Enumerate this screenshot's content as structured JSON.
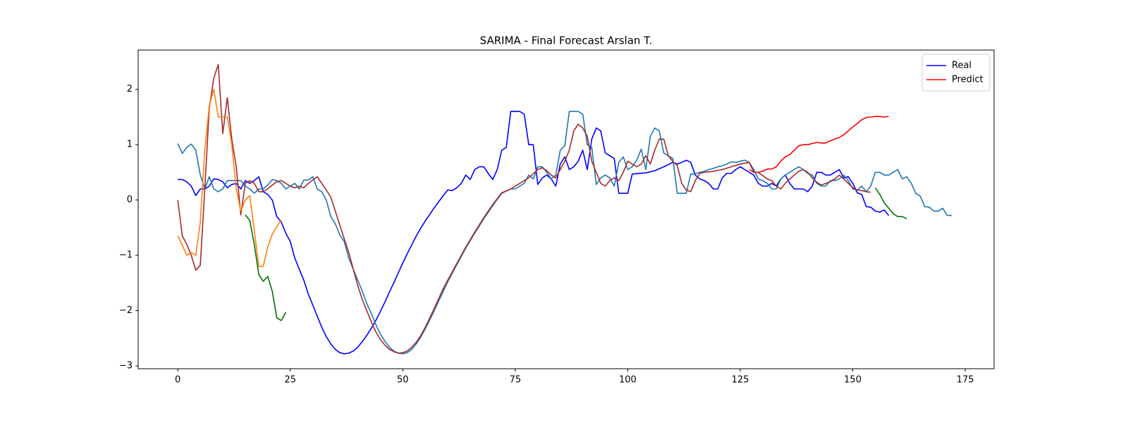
{
  "chart_data": {
    "type": "line",
    "title": "SARIMA - Final Forecast Arslan T.",
    "xlim": [
      -8.8,
      181.4
    ],
    "ylim": [
      -3.05,
      2.71
    ],
    "xticks": [
      0,
      25,
      50,
      75,
      100,
      125,
      150,
      175
    ],
    "yticks": [
      {
        "value": -3,
        "label": "−3"
      },
      {
        "value": -2,
        "label": "−2"
      },
      {
        "value": -1,
        "label": "−1"
      },
      0,
      1,
      2
    ],
    "legend": "upper right",
    "series": [
      {
        "name": "Real",
        "color": "blue",
        "x": [
          0,
          1,
          2,
          3,
          4,
          5,
          6,
          7,
          8,
          9,
          10,
          11,
          12,
          13,
          14,
          15,
          16,
          17,
          18,
          19,
          20,
          21,
          22,
          23,
          24,
          25,
          26,
          27,
          28,
          29,
          30,
          31,
          32,
          33,
          34,
          35,
          36,
          37,
          38,
          39,
          40,
          41,
          42,
          43,
          44,
          45,
          46,
          47,
          48,
          49,
          50,
          51,
          52,
          53,
          54,
          55,
          56,
          57,
          58,
          59,
          60,
          61,
          62,
          63,
          64,
          65,
          66,
          67,
          68,
          69,
          70,
          71,
          72,
          73,
          74,
          75,
          76,
          77,
          78,
          79,
          80,
          81,
          82,
          83,
          84,
          85,
          86,
          87,
          88,
          89,
          90,
          91,
          92,
          93,
          94,
          95,
          96,
          97,
          98,
          99,
          100,
          101,
          104,
          106,
          108,
          110,
          111,
          112,
          113,
          114,
          115,
          116,
          117,
          118,
          119,
          120,
          121,
          122,
          123,
          124,
          125,
          126,
          127,
          128,
          129,
          130,
          131,
          132,
          133,
          134,
          135,
          136,
          137,
          138,
          139,
          140,
          141,
          142,
          143,
          144,
          145,
          146,
          147,
          148,
          149,
          150,
          151,
          152,
          153,
          154,
          155,
          156,
          157,
          158
        ],
        "values": [
          0.37,
          0.37,
          0.33,
          0.25,
          0.08,
          0.2,
          0.2,
          0.25,
          0.38,
          0.37,
          0.33,
          0.22,
          0.28,
          0.3,
          0.2,
          0.35,
          0.3,
          0.35,
          0.42,
          0.15,
          0.1,
          0.0,
          -0.3,
          -0.4,
          -0.6,
          -0.75,
          -1.05,
          -1.25,
          -1.45,
          -1.7,
          -1.9,
          -2.1,
          -2.3,
          -2.47,
          -2.6,
          -2.7,
          -2.76,
          -2.78,
          -2.77,
          -2.73,
          -2.66,
          -2.56,
          -2.45,
          -2.32,
          -2.18,
          -2.02,
          -1.85,
          -1.67,
          -1.5,
          -1.32,
          -1.14,
          -0.97,
          -0.81,
          -0.65,
          -0.51,
          -0.38,
          -0.26,
          -0.14,
          -0.03,
          0.08,
          0.18,
          0.17,
          0.22,
          0.3,
          0.45,
          0.37,
          0.55,
          0.6,
          0.6,
          0.48,
          0.37,
          0.55,
          0.9,
          0.95,
          1.6,
          1.6,
          1.6,
          1.55,
          1.0,
          1.0,
          0.28,
          0.4,
          0.45,
          0.38,
          0.25,
          0.65,
          0.78,
          0.55,
          0.6,
          0.7,
          0.9,
          0.55,
          1.1,
          1.3,
          1.25,
          0.85,
          0.8,
          0.75,
          0.12,
          0.12,
          0.12,
          0.47,
          0.49,
          0.53,
          0.6,
          0.68,
          0.65,
          0.68,
          0.72,
          0.68,
          0.45,
          0.38,
          0.35,
          0.3,
          0.2,
          0.2,
          0.4,
          0.48,
          0.48,
          0.55,
          0.6,
          0.55,
          0.5,
          0.45,
          0.3,
          0.25,
          0.25,
          0.3,
          0.25,
          0.38,
          0.45,
          0.3,
          0.2,
          0.2,
          0.2,
          0.15,
          0.25,
          0.5,
          0.5,
          0.45,
          0.45,
          0.5,
          0.55,
          0.4,
          0.42,
          0.3,
          0.13,
          0.1,
          -0.12,
          -0.13,
          -0.2,
          -0.22,
          -0.18,
          -0.28
        ]
      },
      {
        "name": "Predict",
        "color": "red",
        "x": [
          127,
          128,
          129,
          130,
          131,
          132,
          133,
          134,
          135,
          136,
          137,
          138,
          139,
          140,
          141,
          142,
          143,
          144,
          145,
          146,
          147,
          148,
          149,
          150,
          151,
          152,
          153,
          154,
          155,
          156,
          157,
          158
        ],
        "values": [
          0.55,
          0.5,
          0.5,
          0.52,
          0.56,
          0.56,
          0.6,
          0.7,
          0.78,
          0.82,
          0.9,
          0.98,
          1.0,
          1.0,
          1.02,
          1.04,
          1.03,
          1.03,
          1.07,
          1.1,
          1.13,
          1.18,
          1.25,
          1.32,
          1.38,
          1.45,
          1.49,
          1.5,
          1.51,
          1.51,
          1.5,
          1.51
        ]
      },
      {
        "color": "#1f77b4",
        "x": [
          0,
          1,
          2,
          3,
          4,
          5,
          6,
          7,
          8,
          9,
          10,
          11,
          12,
          13,
          14,
          15,
          16,
          17,
          18,
          19,
          20,
          21,
          22,
          23,
          24,
          25,
          26,
          27,
          28,
          29,
          30,
          31,
          32,
          33,
          34,
          35,
          36,
          37,
          38,
          39,
          40,
          41,
          42,
          43,
          44,
          45,
          46,
          47,
          48,
          49,
          50,
          51,
          52,
          53,
          54,
          55,
          56,
          57,
          58,
          59,
          60,
          62,
          64,
          66,
          68,
          70,
          72,
          74,
          75,
          76,
          77,
          78,
          79,
          80,
          81,
          82,
          83,
          84,
          85,
          86,
          87,
          88,
          89,
          90,
          91,
          92,
          93,
          94,
          95,
          96,
          97,
          98,
          99,
          100,
          101,
          102,
          103,
          104,
          105,
          106,
          107,
          108,
          109,
          110,
          111,
          112,
          113,
          114,
          115,
          116,
          117,
          118,
          119,
          120,
          121,
          122,
          123,
          124,
          125,
          126,
          127,
          128,
          129,
          130,
          131,
          132,
          133,
          134,
          135,
          136,
          137,
          138,
          139,
          140,
          141,
          142,
          143,
          144,
          145,
          146,
          147,
          148,
          149,
          150,
          151,
          152,
          153,
          154,
          155,
          156,
          157,
          158,
          159,
          160,
          161,
          162,
          163,
          164,
          165,
          166,
          167,
          168,
          169,
          170,
          171,
          172
        ],
        "values": [
          1.02,
          0.84,
          0.95,
          1.01,
          0.9,
          0.45,
          0.2,
          0.42,
          0.2,
          0.15,
          0.2,
          0.35,
          0.35,
          0.35,
          0.35,
          0.25,
          0.2,
          0.12,
          0.2,
          0.2,
          0.27,
          0.37,
          0.35,
          0.3,
          0.2,
          0.25,
          0.3,
          0.2,
          0.36,
          0.36,
          0.42,
          0.2,
          0.15,
          0.0,
          -0.3,
          -0.43,
          -0.63,
          -0.75,
          -1.05,
          -1.25,
          -1.45,
          -1.65,
          -1.87,
          -2.05,
          -2.25,
          -2.42,
          -2.55,
          -2.66,
          -2.73,
          -2.77,
          -2.78,
          -2.76,
          -2.7,
          -2.6,
          -2.48,
          -2.33,
          -2.17,
          -2.0,
          -1.82,
          -1.65,
          -1.48,
          -1.17,
          -0.87,
          -0.6,
          -0.34,
          -0.1,
          0.12,
          0.2,
          0.2,
          0.25,
          0.3,
          0.45,
          0.38,
          0.6,
          0.6,
          0.5,
          0.38,
          0.45,
          0.9,
          0.98,
          1.6,
          1.6,
          1.6,
          1.55,
          1.0,
          0.95,
          0.28,
          0.4,
          0.45,
          0.4,
          0.25,
          0.68,
          0.78,
          0.55,
          0.6,
          0.72,
          0.92,
          0.55,
          1.15,
          1.3,
          1.25,
          0.85,
          0.8,
          0.75,
          0.12,
          0.12,
          0.12,
          0.47,
          0.47,
          0.5,
          0.52,
          0.55,
          0.57,
          0.6,
          0.62,
          0.65,
          0.69,
          0.68,
          0.7,
          0.72,
          0.68,
          0.55,
          0.38,
          0.35,
          0.3,
          0.2,
          0.2,
          0.38,
          0.45,
          0.5,
          0.55,
          0.6,
          0.55,
          0.48,
          0.45,
          0.3,
          0.25,
          0.25,
          0.35,
          0.35,
          0.38,
          0.45,
          0.35,
          0.2,
          0.18,
          0.25,
          0.15,
          0.25,
          0.5,
          0.5,
          0.45,
          0.45,
          0.5,
          0.55,
          0.38,
          0.42,
          0.3,
          0.12,
          0.07,
          -0.12,
          -0.13,
          -0.2,
          -0.2,
          -0.15,
          -0.28,
          -0.28
        ]
      },
      {
        "color": "#a52a2a",
        "x": [
          0,
          1,
          2,
          3,
          4,
          5,
          6,
          7,
          8,
          9,
          10,
          11,
          12,
          13,
          14,
          15,
          16,
          17,
          18,
          19,
          20,
          21,
          22,
          23,
          24,
          25,
          26,
          27,
          28,
          29,
          30,
          31,
          32,
          33,
          34,
          35,
          36,
          37,
          38,
          39,
          40,
          41,
          42,
          43,
          44,
          45,
          46,
          47,
          48,
          49,
          50,
          51,
          52,
          53,
          54,
          55,
          56,
          57,
          58,
          59,
          60,
          62,
          64,
          66,
          68,
          70,
          72,
          74,
          76,
          78,
          80,
          81,
          82,
          83,
          84,
          85,
          86,
          87,
          88,
          89,
          90,
          91,
          92,
          93,
          94,
          95,
          96,
          97,
          98,
          99,
          100,
          101,
          102,
          103,
          104,
          105,
          106,
          107,
          108,
          109,
          110,
          111,
          112,
          113,
          114,
          115,
          116,
          117,
          119,
          121,
          123,
          125,
          127,
          128,
          129,
          131,
          132,
          133,
          134,
          135,
          136,
          137,
          138,
          139,
          140,
          141,
          142,
          143,
          144,
          145,
          146,
          147,
          148,
          149,
          150,
          151,
          152,
          153,
          154
        ],
        "values": [
          0.0,
          -0.65,
          -0.8,
          -1.0,
          -1.27,
          -1.18,
          0.2,
          1.65,
          2.2,
          2.45,
          1.2,
          1.85,
          1.1,
          0.6,
          -0.27,
          0.3,
          0.35,
          0.3,
          0.15,
          0.15,
          0.2,
          0.27,
          0.33,
          0.35,
          0.3,
          0.25,
          0.22,
          0.25,
          0.22,
          0.3,
          0.36,
          0.42,
          0.3,
          0.18,
          0.05,
          -0.2,
          -0.45,
          -0.7,
          -0.95,
          -1.25,
          -1.55,
          -1.8,
          -2.0,
          -2.2,
          -2.38,
          -2.52,
          -2.62,
          -2.7,
          -2.74,
          -2.77,
          -2.76,
          -2.73,
          -2.66,
          -2.57,
          -2.45,
          -2.3,
          -2.13,
          -1.96,
          -1.78,
          -1.6,
          -1.45,
          -1.15,
          -0.85,
          -0.58,
          -0.32,
          -0.08,
          0.13,
          0.2,
          0.3,
          0.4,
          0.55,
          0.58,
          0.53,
          0.45,
          0.4,
          0.55,
          0.7,
          0.9,
          1.25,
          1.37,
          1.3,
          1.15,
          0.7,
          0.5,
          0.3,
          0.25,
          0.35,
          0.4,
          0.35,
          0.5,
          0.7,
          0.65,
          0.6,
          0.65,
          0.8,
          0.65,
          0.9,
          1.1,
          1.1,
          0.8,
          0.7,
          0.62,
          0.3,
          0.18,
          0.15,
          0.35,
          0.48,
          0.5,
          0.52,
          0.55,
          0.6,
          0.65,
          0.68,
          0.5,
          0.5,
          0.38,
          0.35,
          0.25,
          0.2,
          0.3,
          0.38,
          0.45,
          0.52,
          0.55,
          0.5,
          0.4,
          0.32,
          0.27,
          0.3,
          0.33,
          0.38,
          0.45,
          0.38,
          0.3,
          0.22,
          0.18,
          0.17,
          0.15,
          0.14
        ]
      },
      {
        "color": "#ff7f0e",
        "x": [
          0,
          1,
          2,
          3,
          4,
          5,
          6,
          7,
          8,
          9,
          10,
          11,
          12,
          13,
          14,
          15,
          16,
          17,
          18,
          19,
          20,
          21,
          22,
          23
        ],
        "values": [
          -0.65,
          -0.82,
          -1.0,
          -0.95,
          -1.0,
          -0.4,
          0.9,
          1.7,
          2.0,
          1.5,
          1.5,
          1.5,
          1.0,
          0.2,
          -0.2,
          0.0,
          0.08,
          -0.55,
          -1.2,
          -1.2,
          -0.85,
          -0.62,
          -0.48,
          -0.36
        ]
      },
      {
        "color": "#007000",
        "x": [
          15,
          16,
          17,
          18,
          19,
          20,
          21,
          22,
          23,
          24
        ],
        "values": [
          -0.27,
          -0.37,
          -0.8,
          -1.35,
          -1.47,
          -1.38,
          -1.65,
          -2.13,
          -2.18,
          -2.03
        ]
      },
      {
        "color": "#007000",
        "x": [
          155,
          156,
          157,
          158,
          159,
          160,
          161,
          162
        ],
        "values": [
          0.22,
          0.1,
          -0.05,
          -0.15,
          -0.25,
          -0.3,
          -0.3,
          -0.34
        ]
      }
    ]
  }
}
